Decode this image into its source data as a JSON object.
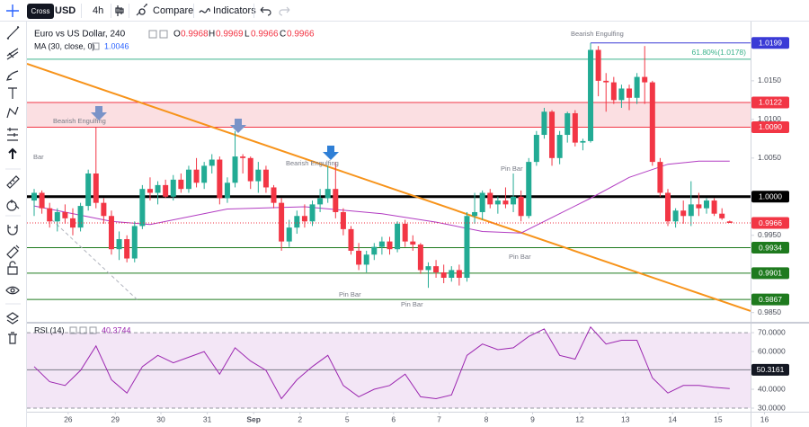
{
  "toolbar": {
    "tooltip": "Cross",
    "symbol": "USD",
    "interval": "4h",
    "buttons": [
      "Compare",
      "Indicators"
    ]
  },
  "chart_data": [
    {
      "type": "candlestick",
      "title": "Euro vs US Dollar, 240",
      "ohlc_letters": [
        "O",
        "H",
        "L",
        "C"
      ],
      "up_color": "#22ab94",
      "down_color": "#f23645",
      "xlim": [
        -0.93,
        92.7
      ],
      "ylim": [
        0.9838,
        1.0222
      ],
      "yticks": [
        {
          "value": 0.985,
          "label": "0.9850"
        },
        {
          "value": 0.995,
          "label": "0.9950"
        },
        {
          "value": 1.005,
          "label": "1.0050"
        },
        {
          "value": 1.01,
          "label": "1.0100"
        },
        {
          "value": 1.015,
          "label": "1.0150"
        }
      ],
      "open": [
        0.9995,
        1.0005,
        0.9985,
        0.9968,
        0.998,
        0.9972,
        0.996,
        0.9988,
        1.003,
        0.9992,
        0.9975,
        0.9932,
        0.9945,
        0.992,
        0.9962,
        1.001,
        1.0005,
        1.0015,
        1.0,
        1.0022,
        1.001,
        1.0035,
        1.0018,
        1.004,
        1.0048,
        0.9998,
        1.0018,
        1.0052,
        1.005,
        1.002,
        1.0035,
        1.0012,
        0.9992,
        0.9942,
        0.996,
        0.9975,
        0.9968,
        0.999,
        0.9998,
        1.001,
        0.998,
        0.9958,
        0.993,
        0.9912,
        0.9925,
        0.9935,
        0.9942,
        0.9932,
        0.9965,
        0.9942,
        0.9938,
        0.9905,
        0.991,
        0.9902,
        0.9895,
        0.9905,
        0.9895,
        0.9975,
        0.998,
        1.0005,
        0.999,
        0.9995,
        0.999,
        1.0,
        0.9975,
        1.0045,
        1.008,
        1.011,
        1.005,
        1.008,
        1.0108,
        1.007,
        1.0072,
        1.019,
        1.015,
        1.0148,
        1.0125,
        1.014,
        1.0128,
        1.0155,
        1.0148,
        1.0045,
        1.0005,
        0.9968,
        0.9982,
        0.9975,
        0.999,
        0.9985,
        0.9995,
        0.9978,
        0.9968
      ],
      "high": [
        1.001,
        1.0008,
        0.9992,
        0.9985,
        0.999,
        0.9985,
        0.9992,
        1.0035,
        1.009,
        0.9998,
        0.9982,
        0.9955,
        0.995,
        0.9968,
        1.0015,
        1.0025,
        1.002,
        1.0022,
        1.0028,
        1.003,
        1.004,
        1.005,
        1.0045,
        1.0055,
        1.0052,
        1.0025,
        1.0085,
        1.0055,
        1.0052,
        1.0045,
        1.004,
        1.0015,
        0.9998,
        0.997,
        0.9982,
        0.999,
        0.9995,
        1.001,
        1.004,
        1.0045,
        0.9985,
        0.9962,
        0.994,
        0.993,
        0.994,
        0.9948,
        0.9948,
        0.9968,
        0.997,
        0.995,
        0.994,
        0.9915,
        0.9918,
        0.9912,
        0.991,
        0.9912,
        0.998,
        1.0005,
        1.0008,
        1.001,
        1.0,
        1.0012,
        1.003,
        1.0008,
        1.005,
        1.0085,
        1.0115,
        1.0112,
        1.0085,
        1.011,
        1.0112,
        1.0075,
        1.0199,
        1.0195,
        1.016,
        1.0155,
        1.0145,
        1.0145,
        1.016,
        1.0195,
        1.015,
        1.005,
        1.001,
        0.9985,
        0.9995,
        1.002,
        1.0005,
        0.9998,
        0.9998,
        0.9985,
        0.9969
      ],
      "low": [
        0.9975,
        0.9978,
        0.996,
        0.9955,
        0.9965,
        0.995,
        0.9955,
        0.9982,
        0.9985,
        0.9965,
        0.9925,
        0.9918,
        0.9915,
        0.9915,
        0.9958,
        0.9995,
        0.999,
        0.9998,
        0.9995,
        1.0005,
        1.0005,
        1.0012,
        1.001,
        1.003,
        0.999,
        0.9992,
        1.0012,
        1.003,
        1.001,
        1.0005,
        1.0005,
        0.9985,
        0.993,
        0.9935,
        0.9952,
        0.996,
        0.9962,
        0.998,
        0.9992,
        0.9972,
        0.995,
        0.9925,
        0.9905,
        0.9902,
        0.9918,
        0.9925,
        0.9925,
        0.9928,
        0.9935,
        0.993,
        0.99,
        0.9882,
        0.9895,
        0.9888,
        0.989,
        0.9885,
        0.989,
        0.9965,
        0.997,
        0.9985,
        0.9978,
        0.9985,
        0.998,
        0.9968,
        0.9972,
        1.004,
        1.0075,
        1.004,
        1.0042,
        1.007,
        1.0065,
        1.006,
        1.007,
        1.013,
        1.011,
        1.012,
        1.0115,
        1.0112,
        1.012,
        1.012,
        1.004,
        1.0,
        0.9962,
        0.996,
        0.9965,
        0.9962,
        0.9975,
        0.9978,
        0.9975,
        0.997,
        0.9966
      ],
      "close": [
        1.0005,
        0.9985,
        0.9968,
        0.998,
        0.9972,
        0.996,
        0.9988,
        1.003,
        0.9992,
        0.9975,
        0.9932,
        0.9945,
        0.992,
        0.9962,
        1.001,
        1.0005,
        1.0015,
        1.0,
        1.0022,
        1.001,
        1.0035,
        1.0018,
        1.004,
        1.0048,
        0.9998,
        1.0018,
        1.0052,
        1.005,
        1.002,
        1.0035,
        1.0012,
        0.9992,
        0.9942,
        0.996,
        0.9975,
        0.9968,
        0.999,
        0.9998,
        1.001,
        0.998,
        0.9958,
        0.993,
        0.9912,
        0.9925,
        0.9935,
        0.9942,
        0.9932,
        0.9965,
        0.9942,
        0.9938,
        0.9905,
        0.991,
        0.9902,
        0.9895,
        0.9905,
        0.9895,
        0.9975,
        0.998,
        1.0005,
        0.999,
        0.9995,
        0.999,
        1.0,
        0.9975,
        1.0045,
        1.008,
        1.011,
        1.005,
        1.008,
        1.0108,
        1.007,
        1.0072,
        1.019,
        1.015,
        1.0148,
        1.0125,
        1.014,
        1.0128,
        1.0155,
        1.0148,
        1.0045,
        1.0005,
        0.9968,
        0.9982,
        0.9975,
        0.999,
        0.9985,
        0.9995,
        0.9978,
        0.9972,
        0.9966
      ],
      "ma": {
        "name": "MA (30, close, 0)",
        "color": "#b23cc2",
        "x": [
          0,
          10,
          15,
          25,
          35,
          45,
          52,
          58,
          63,
          68,
          72,
          77,
          82,
          86,
          90
        ],
        "values": [
          0.9988,
          0.9968,
          0.9964,
          0.9984,
          0.9987,
          0.9978,
          0.9967,
          0.9955,
          0.9953,
          0.9978,
          0.9998,
          1.0025,
          1.0042,
          1.0046,
          1.0046
        ]
      },
      "levels": [
        {
          "value": 1.0199,
          "color": "#3a3ad6",
          "from": 72
        },
        {
          "value": 1.0122,
          "color": "#f23645"
        },
        {
          "value": 1.009,
          "label": "1.0090",
          "color": "#f23645"
        },
        {
          "value": 1,
          "label": "1.0000",
          "color": "#000000",
          "width": 3
        },
        {
          "value": 0.9934,
          "color": "#1e7a1e"
        },
        {
          "value": 0.9901,
          "color": "#1e7a1e"
        },
        {
          "value": 0.9867,
          "color": "#1e7a1e"
        }
      ],
      "zone": {
        "levels": [
          1,
          2
        ],
        "color": "#fbdfe2"
      },
      "fib": {
        "value": 1.0178,
        "label": "61.80%(1.0178)",
        "color": "#3cb38c"
      },
      "trendlines": [
        {
          "color": "#f7931a",
          "width": 2,
          "x": [
            -0.93,
            92.7
          ],
          "values": [
            1.0172,
            0.9852
          ]
        },
        {
          "color": "#b0b3bd",
          "width": 1,
          "dash": true,
          "x": [
            2.3,
            13.3
          ],
          "values": [
            0.997,
            0.9867
          ]
        }
      ],
      "annotations": [
        "Bearish Engulfing",
        "Bearish Engulfing",
        "Bearish Engulfing",
        "Pin Bar",
        "Pin Bar",
        "Pin Bar",
        "Pin Bar",
        "Bar"
      ]
    },
    {
      "type": "line",
      "title": "RSI (14)",
      "color": "#9c27b0",
      "xlim": [
        -0.93,
        92.7
      ],
      "ylim": [
        28.1,
        74.8
      ],
      "yticks": [
        {
          "value": 30,
          "label": "30.0000"
        },
        {
          "value": 40,
          "label": "40.0000"
        },
        {
          "value": 60,
          "label": "60.0000"
        },
        {
          "value": 70,
          "label": "70.0000"
        }
      ],
      "band": [
        30,
        70
      ],
      "band_color": "#f3e6f6",
      "level": 50.3161,
      "xticks": [
        {
          "value": 4.4,
          "label": "26"
        },
        {
          "value": 10.5,
          "label": "29"
        },
        {
          "value": 16.4,
          "label": "30"
        },
        {
          "value": 22.4,
          "label": "31"
        },
        {
          "value": 28.4,
          "label": "Sep"
        },
        {
          "value": 34.4,
          "label": "2"
        },
        {
          "value": 40.5,
          "label": "5"
        },
        {
          "value": 46.5,
          "label": "6"
        },
        {
          "value": 52.4,
          "label": "7"
        },
        {
          "value": 58.5,
          "label": "8"
        },
        {
          "value": 64.5,
          "label": "9"
        },
        {
          "value": 70.6,
          "label": "12"
        },
        {
          "value": 76.5,
          "label": "13"
        },
        {
          "value": 82.6,
          "label": "14"
        },
        {
          "value": 88.5,
          "label": "15"
        },
        {
          "value": 94.5,
          "label": "16"
        }
      ],
      "x": [
        0,
        2,
        4,
        6,
        8,
        10,
        12,
        14,
        16,
        18,
        20,
        22,
        24,
        26,
        28,
        30,
        32,
        34,
        36,
        38,
        40,
        42,
        44,
        46,
        48,
        50,
        52,
        54,
        56,
        58,
        60,
        62,
        64,
        66,
        68,
        70,
        72,
        74,
        76,
        78,
        80,
        82,
        84,
        86,
        88,
        90
      ],
      "values": [
        52,
        44,
        42,
        50,
        63,
        45,
        38,
        52,
        58,
        54,
        57,
        60,
        48,
        62,
        55,
        50,
        35,
        45,
        52,
        58,
        42,
        36,
        40,
        42,
        48,
        36,
        35,
        37,
        58,
        64,
        61,
        62,
        68,
        72,
        58,
        56,
        73,
        64,
        66,
        66,
        46,
        38,
        42,
        42,
        41,
        40.3744
      ]
    }
  ]
}
